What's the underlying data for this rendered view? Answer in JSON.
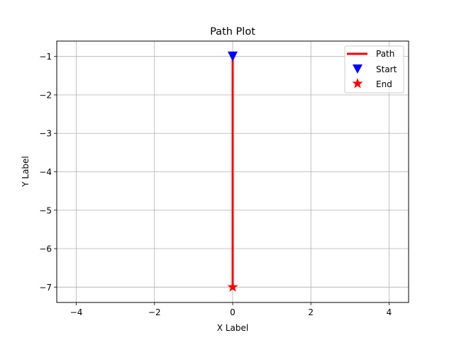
{
  "chart_data": {
    "type": "line",
    "title": "Path Plot",
    "xlabel": "X Label",
    "ylabel": "Y Label",
    "xlim": [
      -4.5,
      4.5
    ],
    "ylim": [
      -7.4,
      -0.6
    ],
    "xticks": [
      -4,
      -2,
      0,
      2,
      4
    ],
    "xtick_labels": [
      "−4",
      "−2",
      "0",
      "2",
      "4"
    ],
    "yticks": [
      -1,
      -2,
      -3,
      -4,
      -5,
      -6,
      -7
    ],
    "ytick_labels": [
      "−1",
      "−2",
      "−3",
      "−4",
      "−5",
      "−6",
      "−7"
    ],
    "grid": true,
    "legend_position": "top-right",
    "series": [
      {
        "name": "Path",
        "kind": "line",
        "color": "#ff0000",
        "x": [
          0,
          0
        ],
        "y": [
          -1,
          -7
        ]
      },
      {
        "name": "Start",
        "kind": "marker",
        "marker": "triangle-down",
        "color": "#0000ff",
        "x": [
          0
        ],
        "y": [
          -1
        ]
      },
      {
        "name": "End",
        "kind": "marker",
        "marker": "star",
        "color": "#ff0000",
        "x": [
          0
        ],
        "y": [
          -7
        ]
      }
    ]
  }
}
